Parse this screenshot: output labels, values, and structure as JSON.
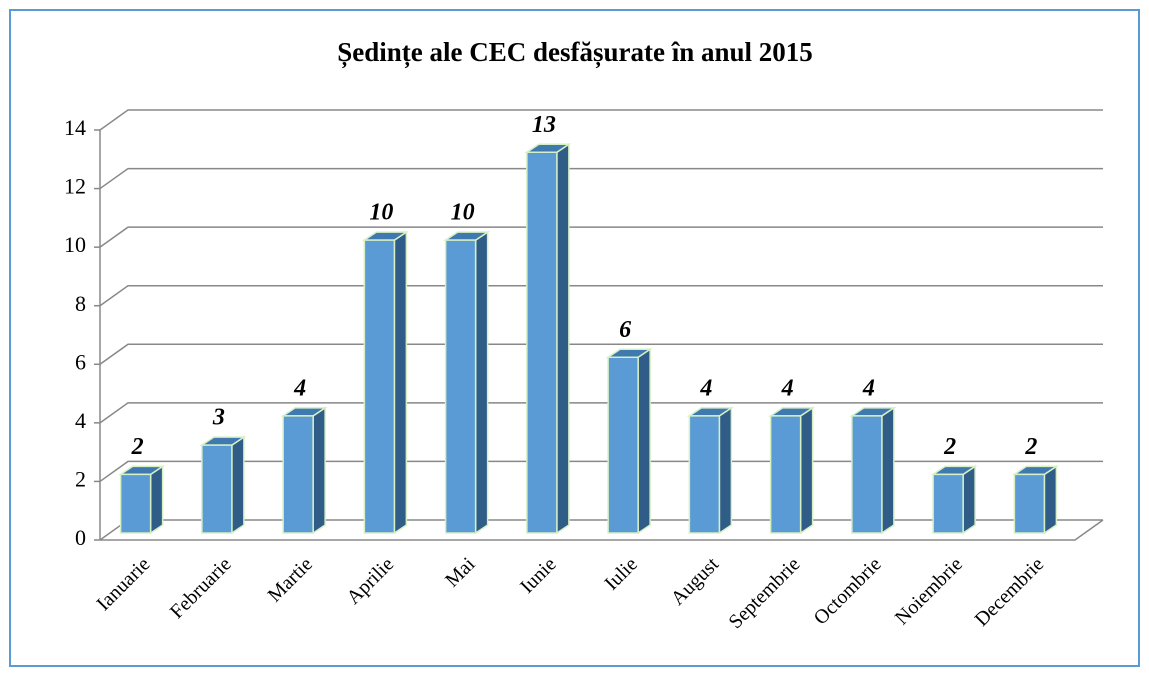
{
  "chart_data": {
    "type": "bar3d",
    "title": "Ședințe ale CEC desfășurate în anul 2015",
    "categories": [
      "Ianuarie",
      "Februarie",
      "Martie",
      "Aprilie",
      "Mai",
      "Iunie",
      "Iulie",
      "August",
      "Septembrie",
      "Octombrie",
      "Noiembrie",
      "Decembrie"
    ],
    "values": [
      2,
      3,
      4,
      10,
      10,
      13,
      6,
      4,
      4,
      4,
      2,
      2
    ],
    "color": "#5b9bd5",
    "ylim": [
      0,
      14
    ],
    "yticks": [
      0,
      2,
      4,
      6,
      8,
      10,
      12,
      14
    ],
    "grid": true
  }
}
